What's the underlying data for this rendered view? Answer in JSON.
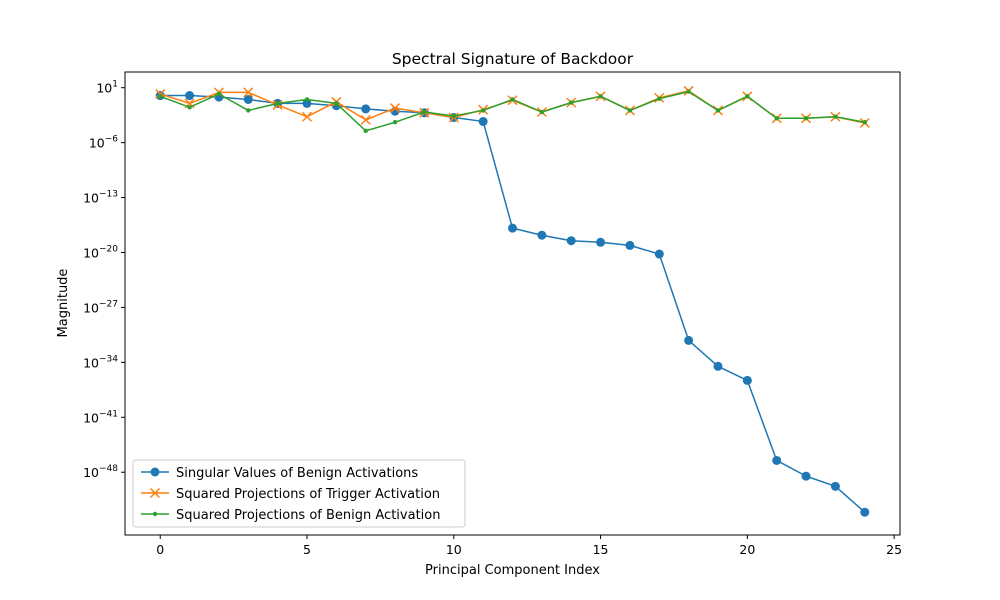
{
  "chart_data": {
    "type": "line",
    "title": "Spectral Signature of Backdoor",
    "xlabel": "Principal Component Index",
    "ylabel": "Magnitude",
    "y_scale": "log10",
    "xlim": [
      -1.2,
      25.2
    ],
    "ylim_exp": [
      -56,
      3
    ],
    "x_ticks": [
      0,
      5,
      10,
      15,
      20,
      25
    ],
    "y_tick_exps": [
      1,
      -6,
      -13,
      -20,
      -27,
      -34,
      -41,
      -48
    ],
    "grid": false,
    "legend_position": "lower-left",
    "x": [
      0,
      1,
      2,
      3,
      4,
      5,
      6,
      7,
      8,
      9,
      10,
      11,
      12,
      13,
      14,
      15,
      16,
      17,
      18,
      19,
      20,
      21,
      22,
      23,
      24
    ],
    "series": [
      {
        "name": "Singular Values of Benign Activations",
        "color": "#1f77b4",
        "marker": "circle",
        "log10_values": [
          0,
          0,
          -0.2,
          -0.5,
          -1.0,
          -1.0,
          -1.3,
          -1.7,
          -2.0,
          -2.2,
          -2.8,
          -3.3,
          -16.9,
          -17.8,
          -18.5,
          -18.7,
          -19.1,
          -20.2,
          -31.2,
          -34.5,
          -36.3,
          -46.5,
          -48.5,
          -49.8,
          -53.1
        ]
      },
      {
        "name": "Squared Projections of Trigger Activation",
        "color": "#ff7f0e",
        "marker": "x",
        "log10_values": [
          0.2,
          -1.0,
          0.4,
          0.4,
          -1.2,
          -2.7,
          -0.8,
          -3.1,
          -1.6,
          -2.2,
          -2.8,
          -1.8,
          -0.6,
          -2.1,
          -0.9,
          -0.1,
          -1.9,
          -0.3,
          0.6,
          -1.9,
          -0.1,
          -2.9,
          -2.9,
          -2.7,
          -3.5
        ]
      },
      {
        "name": "Squared Projections of Benign Activation",
        "color": "#2ca02c",
        "marker": "dot",
        "log10_values": [
          -0.1,
          -1.5,
          0.2,
          -1.9,
          -1.0,
          -0.5,
          -1.0,
          -4.5,
          -3.4,
          -2.1,
          -2.6,
          -1.9,
          -0.5,
          -2.1,
          -0.9,
          -0.1,
          -1.9,
          -0.4,
          0.5,
          -1.9,
          -0.1,
          -2.9,
          -2.9,
          -2.7,
          -3.4
        ]
      }
    ]
  }
}
